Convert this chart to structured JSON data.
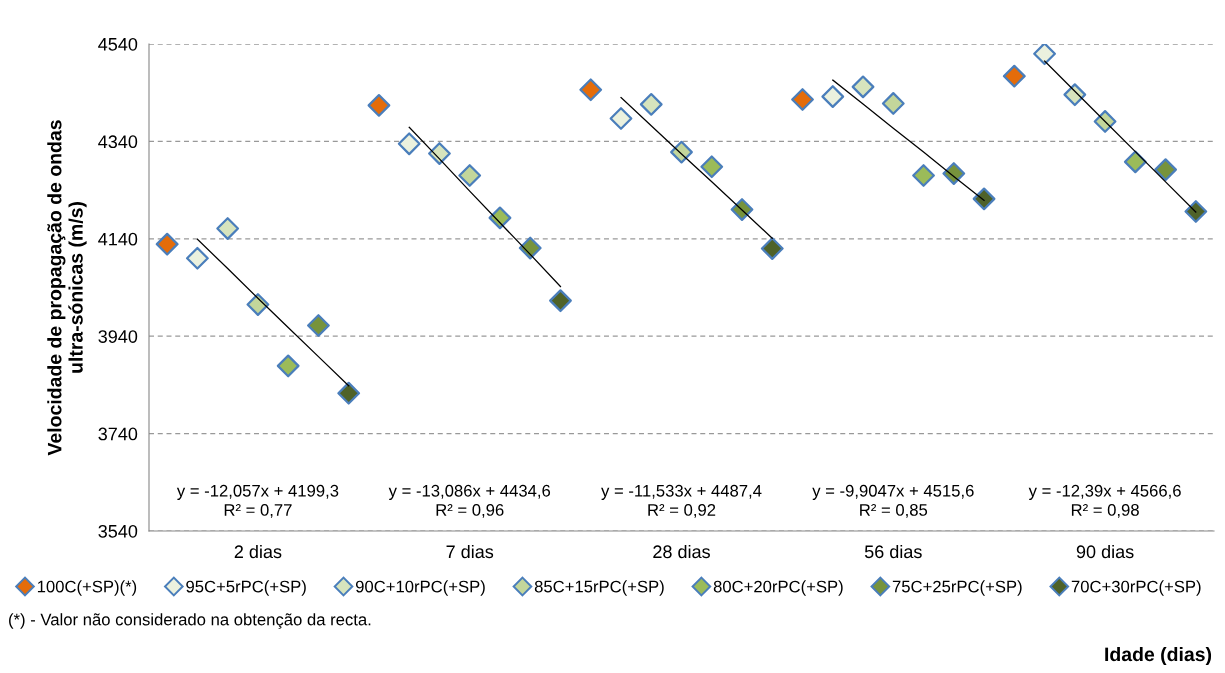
{
  "chart_data": {
    "type": "scatter",
    "ylabel": "Velocidade de propagação de ondas\nultra-sónicas (m/s)",
    "xlabel": "Idade (dias)",
    "categories": [
      null,
      null,
      null,
      "2 dias",
      null,
      null,
      null,
      null,
      null,
      null,
      "7 dias",
      null,
      null,
      null,
      null,
      null,
      null,
      "28 dias",
      null,
      null,
      null,
      null,
      null,
      null,
      "56 dias",
      null,
      null,
      null,
      null,
      null,
      null,
      "90 dias",
      null,
      null,
      null
    ],
    "ylim": [
      3540,
      4540
    ],
    "yticks": [
      3540,
      3740,
      3940,
      4140,
      4340,
      4540
    ],
    "grid": "y",
    "legend": "bottom",
    "marker": "diamond",
    "series": [
      {
        "name": "100C(+SP)(*)",
        "color": "#e46c0a",
        "values": [
          4129,
          null,
          null,
          null,
          null,
          null,
          null,
          4414,
          null,
          null,
          null,
          null,
          null,
          null,
          4446,
          null,
          null,
          null,
          null,
          null,
          null,
          4426,
          null,
          null,
          null,
          null,
          null,
          null,
          4474,
          null,
          null,
          null,
          null,
          null,
          null
        ]
      },
      {
        "name": "95C+5rPC(+SP)",
        "color": "#ebf1de",
        "values": [
          null,
          4100,
          null,
          null,
          null,
          null,
          null,
          null,
          4335,
          null,
          null,
          null,
          null,
          null,
          null,
          4387,
          null,
          null,
          null,
          null,
          null,
          null,
          4432,
          null,
          null,
          null,
          null,
          null,
          null,
          4520,
          null,
          null,
          null,
          null,
          null
        ]
      },
      {
        "name": "90C+10rPC(+SP)",
        "color": "#d7e4bd",
        "values": [
          null,
          null,
          4161,
          null,
          null,
          null,
          null,
          null,
          null,
          4315,
          null,
          null,
          null,
          null,
          null,
          null,
          4416,
          null,
          null,
          null,
          null,
          null,
          null,
          4452,
          null,
          null,
          null,
          null,
          null,
          null,
          4436,
          null,
          null,
          null,
          null
        ]
      },
      {
        "name": "85C+15rPC(+SP)",
        "color": "#c3d69b",
        "values": [
          null,
          null,
          null,
          4005,
          null,
          null,
          null,
          null,
          null,
          null,
          4270,
          null,
          null,
          null,
          null,
          null,
          null,
          4318,
          null,
          null,
          null,
          null,
          null,
          null,
          4418,
          null,
          null,
          null,
          null,
          null,
          null,
          4381,
          null,
          null,
          null
        ]
      },
      {
        "name": "80C+20rPC(+SP)",
        "color": "#9bbb59",
        "values": [
          null,
          null,
          null,
          null,
          3879,
          null,
          null,
          null,
          null,
          null,
          null,
          4183,
          null,
          null,
          null,
          null,
          null,
          null,
          4288,
          null,
          null,
          null,
          null,
          null,
          null,
          4270,
          null,
          null,
          null,
          null,
          null,
          null,
          4298,
          null,
          null
        ]
      },
      {
        "name": "75C+25rPC(+SP)",
        "color": "#77933c",
        "values": [
          null,
          null,
          null,
          null,
          null,
          3962,
          null,
          null,
          null,
          null,
          null,
          null,
          4121,
          null,
          null,
          null,
          null,
          null,
          null,
          4200,
          null,
          null,
          null,
          null,
          null,
          null,
          4274,
          null,
          null,
          null,
          null,
          null,
          null,
          4282,
          null
        ]
      },
      {
        "name": "70C+30rPC(+SP)",
        "color": "#4f6228",
        "values": [
          null,
          null,
          null,
          null,
          null,
          null,
          3823,
          null,
          null,
          null,
          null,
          null,
          null,
          4013,
          null,
          null,
          null,
          null,
          null,
          null,
          4120,
          null,
          null,
          null,
          null,
          null,
          null,
          4222,
          null,
          null,
          null,
          null,
          null,
          null,
          4196
        ]
      },
      {
        "type": "line",
        "color": "#000000",
        "marker": "none",
        "values": [
          null,
          4139,
          4079,
          4018,
          3958,
          3898,
          3838,
          null,
          null,
          null,
          null,
          null,
          null,
          null,
          null,
          null,
          null,
          null,
          null,
          null,
          null,
          null,
          null,
          null,
          null,
          null,
          null,
          null,
          null,
          null,
          null,
          null,
          null,
          null,
          null
        ]
      },
      {
        "type": "line",
        "color": "#000000",
        "marker": "none",
        "values": [
          null,
          null,
          null,
          null,
          null,
          null,
          null,
          null,
          4369,
          4304,
          4238,
          4173,
          4108,
          4042,
          null,
          null,
          null,
          null,
          null,
          null,
          null,
          null,
          null,
          null,
          null,
          null,
          null,
          null,
          null,
          null,
          null,
          null,
          null,
          null,
          null
        ]
      },
      {
        "type": "line",
        "color": "#000000",
        "marker": "none",
        "values": [
          null,
          null,
          null,
          null,
          null,
          null,
          null,
          null,
          null,
          null,
          null,
          null,
          null,
          null,
          null,
          4430,
          4372,
          4314,
          4257,
          4199,
          4141,
          null,
          null,
          null,
          null,
          null,
          null,
          null,
          null,
          null,
          null,
          null,
          null,
          null,
          null
        ]
      },
      {
        "type": "line",
        "color": "#000000",
        "marker": "none",
        "values": [
          null,
          null,
          null,
          null,
          null,
          null,
          null,
          null,
          null,
          null,
          null,
          null,
          null,
          null,
          null,
          null,
          null,
          null,
          null,
          null,
          null,
          null,
          4466,
          4417,
          4367,
          4318,
          4268,
          4219,
          null,
          null,
          null,
          null,
          null,
          null,
          null
        ]
      },
      {
        "type": "line",
        "color": "#000000",
        "marker": "none",
        "values": [
          null,
          null,
          null,
          null,
          null,
          null,
          null,
          null,
          null,
          null,
          null,
          null,
          null,
          null,
          null,
          null,
          null,
          null,
          null,
          null,
          null,
          null,
          null,
          null,
          null,
          null,
          null,
          null,
          null,
          4505,
          4443,
          4381,
          4319,
          4257,
          4195
        ]
      }
    ],
    "annotations": [
      "y = -12,057x + 4199,3\nR² = 0,77",
      "y = -13,086x + 4434,6\nR² = 0,96",
      "y = -11,533x + 4487,4\nR² = 0,92",
      "y = -9,9047x + 4515,6\nR² = 0,85",
      "y = -12,39x + 4566,6\nR² = 0,98",
      "(*) - Valor não considerado na obtenção da recta."
    ]
  }
}
